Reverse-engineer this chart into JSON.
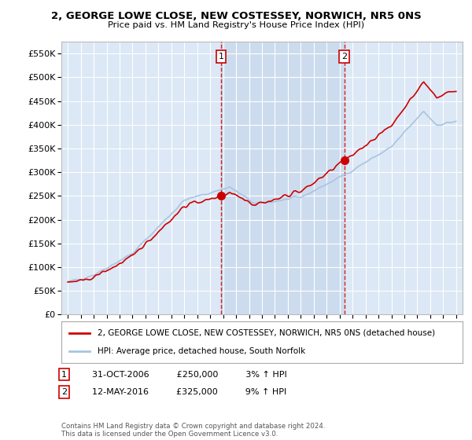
{
  "title_line1": "2, GEORGE LOWE CLOSE, NEW COSTESSEY, NORWICH, NR5 0NS",
  "title_line2": "Price paid vs. HM Land Registry's House Price Index (HPI)",
  "legend_property": "2, GEORGE LOWE CLOSE, NEW COSTESSEY, NORWICH, NR5 0NS (detached house)",
  "legend_hpi": "HPI: Average price, detached house, South Norfolk",
  "annotation1_date": "31-OCT-2006",
  "annotation1_price": "£250,000",
  "annotation1_hpi": "3% ↑ HPI",
  "annotation2_date": "12-MAY-2016",
  "annotation2_price": "£325,000",
  "annotation2_hpi": "9% ↑ HPI",
  "footer": "Contains HM Land Registry data © Crown copyright and database right 2024.\nThis data is licensed under the Open Government Licence v3.0.",
  "sale1_year": 2006.83,
  "sale1_value": 250000,
  "sale2_year": 2016.36,
  "sale2_value": 325000,
  "ylim": [
    0,
    575000
  ],
  "xlim_start": 1994.5,
  "xlim_end": 2025.5,
  "background_color": "#ffffff",
  "plot_bg_color": "#dce8f5",
  "highlight_bg_color": "#ccdcee",
  "grid_color": "#ffffff",
  "hpi_color": "#a8c4e0",
  "property_color": "#cc0000",
  "vline_color": "#cc0000",
  "shade_start": 2006.83,
  "shade_end": 2016.36
}
